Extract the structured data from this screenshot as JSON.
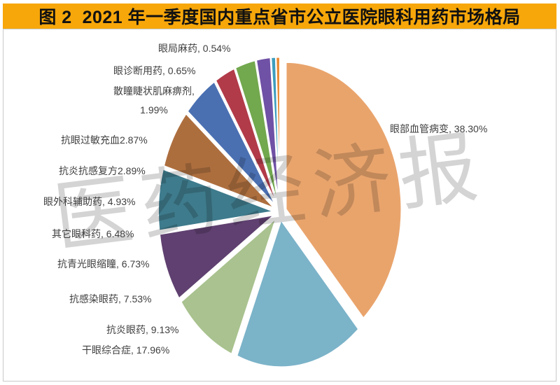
{
  "title": "图 2  2021 年一季度国内重点省市公立医院眼科用药市场格局",
  "watermark": "医药经济报",
  "colors": {
    "title_bar_bg": "#F7A70A",
    "title_text": "#111111",
    "frame_border": "#C9C9C9",
    "label_text": "#3F3F3F",
    "slice_stroke": "#FFFFFF",
    "watermark_gray": "#6E6E6E"
  },
  "chart_data": {
    "type": "pie",
    "title": "2021 年一季度国内重点省市公立医院眼科用药市场格局",
    "units": "%",
    "start_angle_deg": 0,
    "direction": "clockwise",
    "exploded": true,
    "legend_position": "none",
    "slices": [
      {
        "name": "眼部血管病变",
        "value": 38.3,
        "color": "#E9A46C",
        "label": "眼部血管病变, 38.30%"
      },
      {
        "name": "干眼综合症",
        "value": 17.96,
        "color": "#7BB3C9",
        "label": "干眼综合症, 17.96%"
      },
      {
        "name": "抗炎眼药",
        "value": 9.13,
        "color": "#A9C28F",
        "label": "抗炎眼药, 9.13%"
      },
      {
        "name": "抗感染眼药",
        "value": 7.53,
        "color": "#5F4070",
        "label": "抗感染眼药, 7.53%"
      },
      {
        "name": "抗青光眼缩瞳",
        "value": 6.73,
        "color": "#3E7B8C",
        "label": "抗青光眼缩瞳, 6.73%"
      },
      {
        "name": "其它眼科药",
        "value": 6.48,
        "color": "#AD6E3E",
        "label": "其它眼科药, 6.48%"
      },
      {
        "name": "眼外科辅助药",
        "value": 4.93,
        "color": "#4A70B2",
        "label": "眼外科辅助药, 4.93%"
      },
      {
        "name": "抗炎抗感复方",
        "value": 2.89,
        "color": "#B23B49",
        "label": "抗炎抗感复方2.89%"
      },
      {
        "name": "抗眼过敏充血",
        "value": 2.87,
        "color": "#72A84E",
        "label": "抗眼过敏充血2.87%"
      },
      {
        "name": "散瞳睫状肌麻痹剂",
        "value": 1.99,
        "color": "#6F51A5",
        "label": "散瞳睫状肌麻痹剂,\n1.99%"
      },
      {
        "name": "眼诊断用药",
        "value": 0.65,
        "color": "#3D9DBE",
        "label": "眼诊断用药, 0.65%"
      },
      {
        "name": "眼局麻药",
        "value": 0.54,
        "color": "#E8862E",
        "label": "眼局麻药, 0.54%"
      }
    ]
  }
}
